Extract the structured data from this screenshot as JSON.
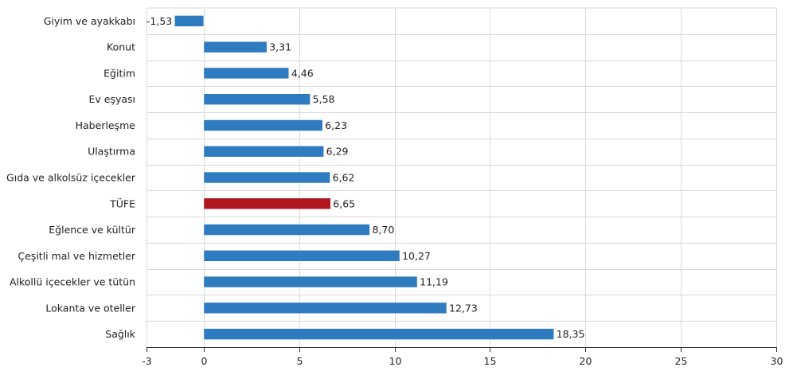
{
  "chart_data": {
    "type": "bar",
    "orientation": "horizontal",
    "categories": [
      "Giyim ve ayakkabı",
      "Konut",
      "Eğitim",
      "Ev eşyası",
      "Haberleşme",
      "Ulaştırma",
      "Gıda ve alkolsüz içecekler",
      "TÜFE",
      "Eğlence ve kültür",
      "Çeşitli mal ve hizmetler",
      "Alkollü içecekler ve tütün",
      "Lokanta ve oteller",
      "Sağlık"
    ],
    "values": [
      -1.53,
      3.31,
      4.46,
      5.58,
      6.23,
      6.29,
      6.62,
      6.65,
      8.7,
      10.27,
      11.19,
      12.73,
      18.35
    ],
    "value_labels": [
      "-1,53",
      "3,31",
      "4,46",
      "5,58",
      "6,23",
      "6,29",
      "6,62",
      "6,65",
      "8,70",
      "10,27",
      "11,19",
      "12,73",
      "18,35"
    ],
    "xlim": [
      -3,
      30
    ],
    "xticks": [
      -3,
      0,
      5,
      10,
      15,
      20,
      25,
      30
    ],
    "xtick_labels": [
      "-3",
      "0",
      "5",
      "10",
      "15",
      "20",
      "25",
      "30"
    ],
    "grid": true,
    "legend": "none",
    "colors": {
      "bar": "#2e7bbf",
      "highlight": "#b0171f",
      "grid": "#d9d9d9",
      "axis": "#333333"
    },
    "highlight_category": "TÜFE"
  }
}
